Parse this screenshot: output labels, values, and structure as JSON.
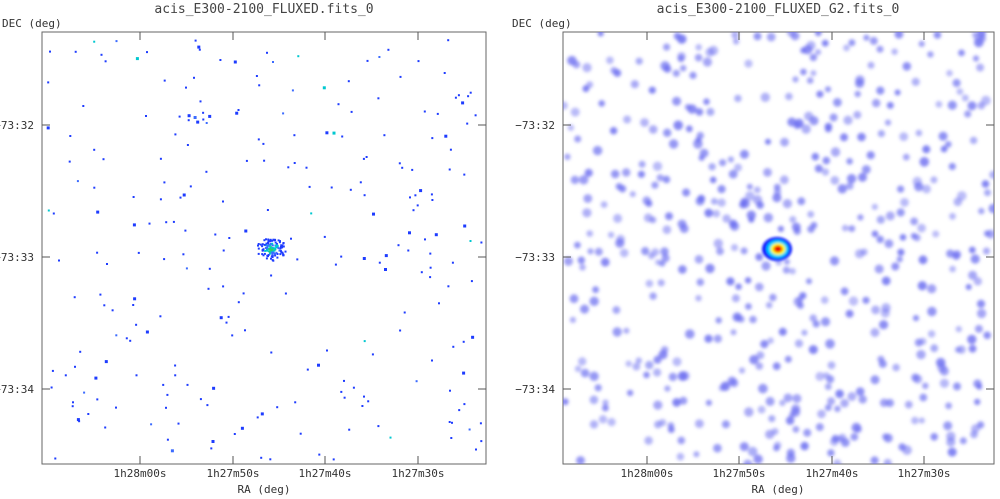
{
  "chart_data": [
    {
      "type": "heatmap",
      "title": "acis_E300-2100_FLUXED.fits_0",
      "xlabel": "RA (deg)",
      "ylabel": "DEC (deg)",
      "x_ticks": [
        "1h28m00s",
        "1h27m50s",
        "1h27m40s",
        "1h27m30s"
      ],
      "y_ticks": [
        "-73:32",
        "-73:33",
        "-73:34"
      ],
      "render_style": "sparse-pixels",
      "n_background_sources": 260,
      "seed": 7,
      "colors": [
        "#1e3cff",
        "#3b6bff",
        "#00c8d0",
        "#30d060"
      ]
    },
    {
      "type": "heatmap",
      "title": "acis_E300-2100_FLUXED_G2.fits_0",
      "xlabel": "RA (deg)",
      "ylabel": "DEC (deg)",
      "x_ticks": [
        "1h28m00s",
        "1h27m50s",
        "1h27m40s",
        "1h27m30s"
      ],
      "y_ticks": [
        "-73:32",
        "-73:33",
        "-73:34"
      ],
      "render_style": "smoothed-blobs",
      "n_background_sources": 520,
      "seed": 13,
      "colors": [
        "#6a6cf0",
        "#0a14ff",
        "#00d0ff",
        "#ffff00",
        "#ff2000",
        "#cc0000"
      ]
    }
  ]
}
